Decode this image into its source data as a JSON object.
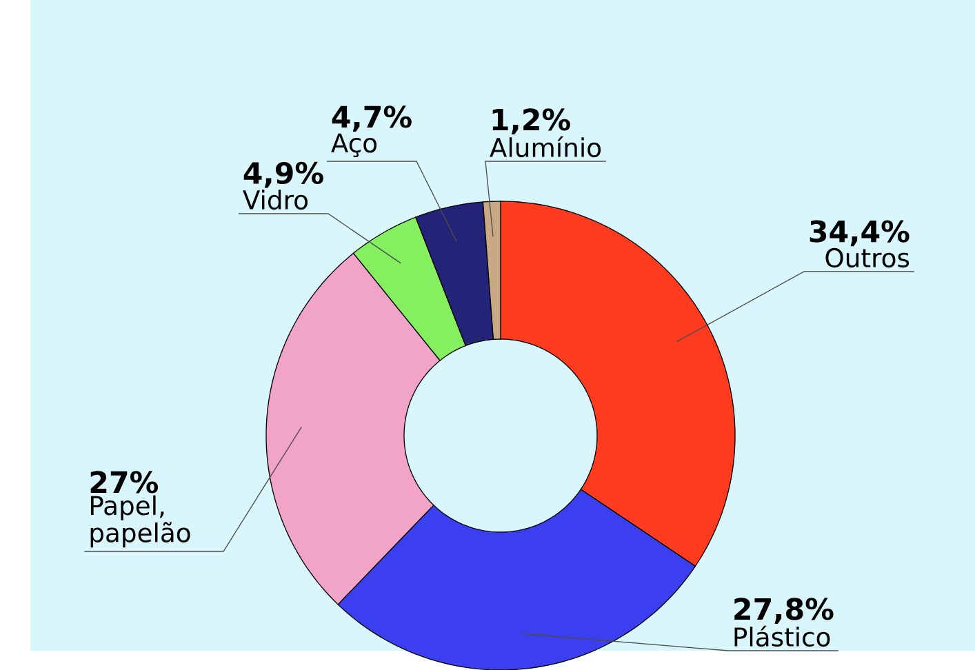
{
  "chart_data": {
    "type": "donut",
    "categories": [
      "Outros",
      "Plástico",
      "Papel, papelão",
      "Vidro",
      "Aço",
      "Alumínio"
    ],
    "values": [
      34.4,
      27.8,
      27,
      4.9,
      4.7,
      1.2
    ],
    "value_labels": [
      "34,4%",
      "27,8%",
      "27%",
      "4,9%",
      "4,7%",
      "1,2%"
    ],
    "colors": [
      "#ff3b1f",
      "#3b3ff0",
      "#f2a3c8",
      "#84f060",
      "#232378",
      "#c9a983"
    ]
  }
}
